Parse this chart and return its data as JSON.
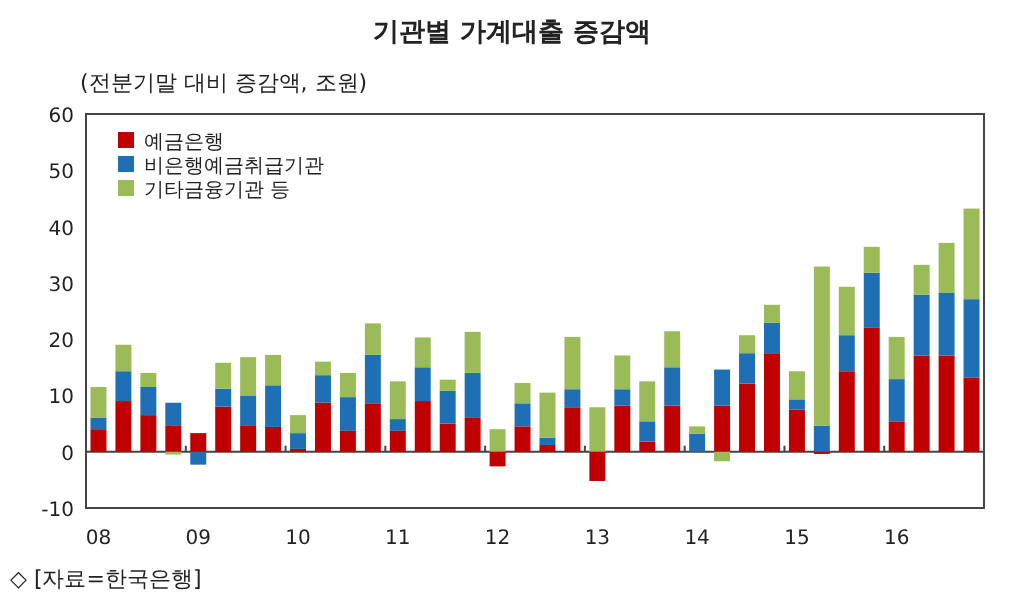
{
  "chart_data": {
    "type": "bar",
    "stacked": true,
    "title": "기관별 가계대출 증감액",
    "subtitle": "(전분기말 대비 증감액, 조원)",
    "annotations": [
      "◇ [자료=한국은행]"
    ],
    "categories": [
      "08",
      null,
      null,
      null,
      "09",
      null,
      null,
      null,
      "10",
      null,
      null,
      null,
      "11",
      null,
      null,
      null,
      "12",
      null,
      null,
      null,
      "13",
      null,
      null,
      null,
      "14",
      null,
      null,
      null,
      "15",
      null,
      null,
      null,
      "16",
      null,
      null,
      null
    ],
    "series": [
      {
        "name": "예금은행",
        "color": "#c00000",
        "values": [
          4,
          9,
          6.5,
          4.7,
          3.3,
          8,
          4.7,
          4.4,
          0.5,
          8.7,
          3.7,
          8.6,
          3.7,
          9,
          5,
          6,
          -2.6,
          4.5,
          1.2,
          7.9,
          -5.2,
          8.2,
          1.8,
          8.2,
          0,
          8.2,
          12.1,
          17.5,
          7.5,
          -0.4,
          14.3,
          22.1,
          5.4,
          17.1,
          17.1,
          13.2
        ]
      },
      {
        "name": "비은행예금취급기관",
        "color": "#1f6fb5",
        "values": [
          2,
          5.3,
          5,
          4,
          -2.3,
          3.2,
          5.3,
          7.4,
          2.8,
          4.9,
          6,
          8.6,
          2.1,
          6,
          5.8,
          8,
          0,
          4.1,
          1.3,
          3.2,
          0,
          2.9,
          3.6,
          6.8,
          3.2,
          6.4,
          5.4,
          5.4,
          1.8,
          4.6,
          6.4,
          9.7,
          7.5,
          10.8,
          11.1,
          13.9
        ]
      },
      {
        "name": "기타금융기관 등",
        "color": "#9bbb59",
        "values": [
          5.5,
          4.7,
          2.5,
          -0.5,
          0,
          4.6,
          6.8,
          5.4,
          3.2,
          2.4,
          4.3,
          5.6,
          6.7,
          5.3,
          2,
          7.3,
          4,
          3.6,
          8,
          9.3,
          7.9,
          6,
          7.1,
          6.4,
          1.3,
          -1.7,
          3.2,
          3.2,
          5,
          28.3,
          8.6,
          4.6,
          7.5,
          5.3,
          8.9,
          16.1
        ]
      }
    ],
    "ylim": [
      -10,
      60
    ],
    "yticks": [
      -10,
      0,
      10,
      20,
      30,
      40,
      50,
      60
    ],
    "legend": "top left"
  }
}
